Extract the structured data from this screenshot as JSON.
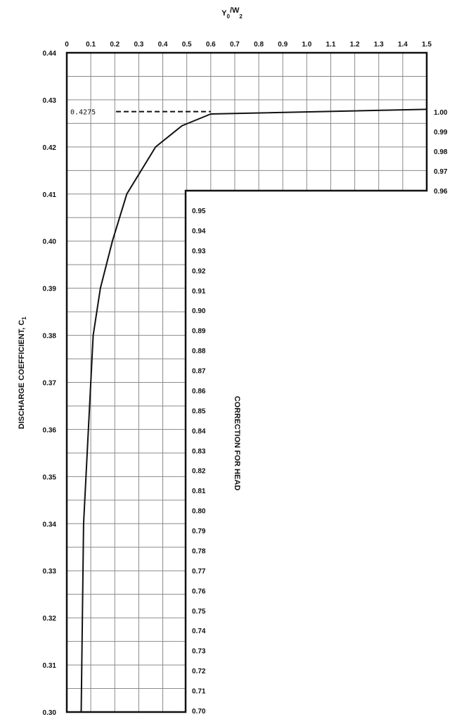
{
  "chart_data": {
    "type": "line",
    "title": "",
    "top_axis": {
      "label_main": "Y",
      "label_sub1": "0",
      "label_sep": "/W",
      "label_sub2": "2",
      "range": [
        0,
        1.5
      ],
      "tick_labels": [
        "0",
        "0.1",
        "0.2",
        "0.3",
        "0.4",
        "0.5",
        "0.6",
        "0.7",
        "0.8",
        "0.9",
        "1.0",
        "1.1",
        "1.2",
        "1.3",
        "1.4",
        "1.5"
      ]
    },
    "left_axis": {
      "label": "DISCHARGE COEFFICIENT, C",
      "label_sub": "1",
      "range": [
        0.3,
        0.44
      ],
      "tick_labels": [
        "0.44",
        "0.43",
        "0.42",
        "0.41",
        "0.40",
        "0.39",
        "0.38",
        "0.37",
        "0.36",
        "0.35",
        "0.34",
        "0.33",
        "0.32",
        "0.31",
        "0.30"
      ]
    },
    "correction_axis": {
      "label": "CORRECTION FOR HEAD",
      "range": [
        0.7,
        1.0
      ],
      "upper_tick_labels": [
        "1.00",
        "0.99",
        "0.98",
        "0.97",
        "0.96"
      ],
      "lower_tick_labels": [
        "0.95",
        "0.94",
        "0.93",
        "0.92",
        "0.91",
        "0.90",
        "0.89",
        "0.88",
        "0.87",
        "0.86",
        "0.85",
        "0.84",
        "0.83",
        "0.82",
        "0.81",
        "0.80",
        "0.79",
        "0.78",
        "0.77",
        "0.76",
        "0.75",
        "0.74",
        "0.73",
        "0.72",
        "0.71",
        "0.70"
      ]
    },
    "grid": true,
    "series": [
      {
        "points": [
          [
            0.06,
            0.3
          ],
          [
            0.065,
            0.32
          ],
          [
            0.07,
            0.34
          ],
          [
            0.09,
            0.36
          ],
          [
            0.11,
            0.38
          ],
          [
            0.14,
            0.39
          ],
          [
            0.19,
            0.4
          ],
          [
            0.25,
            0.41
          ],
          [
            0.37,
            0.42
          ],
          [
            0.48,
            0.4245
          ],
          [
            0.6,
            0.427
          ],
          [
            1.5,
            0.428
          ]
        ]
      }
    ],
    "annotation": {
      "text": "0.4275",
      "x": 0.6,
      "y": 0.4275
    }
  }
}
